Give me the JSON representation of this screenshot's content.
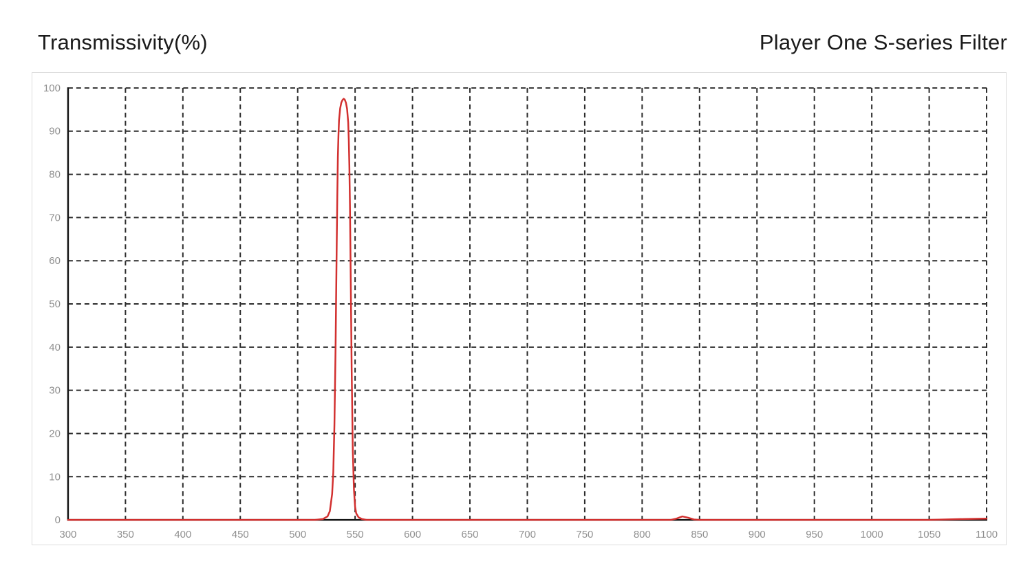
{
  "header": {
    "ylabel_title": "Transmissivity(%)",
    "chart_title": "Player One S-series Filter"
  },
  "colors": {
    "background": "#ffffff",
    "title_text": "#1b1b1b",
    "tick_label": "#8f8f8f",
    "grid_line": "#2b2b2b",
    "axis_line": "#141414",
    "curve": "#d2302f",
    "outer_border": "#dcdcdc"
  },
  "chart_data": {
    "type": "line",
    "title": "Player One S-series Filter",
    "ylabel": "Transmissivity(%)",
    "xlabel": "",
    "xlim": [
      300,
      1100
    ],
    "ylim": [
      0,
      100
    ],
    "x_ticks": [
      300,
      350,
      400,
      450,
      500,
      550,
      600,
      650,
      700,
      750,
      800,
      850,
      900,
      950,
      1000,
      1050,
      1100
    ],
    "y_ticks": [
      0,
      10,
      20,
      30,
      40,
      50,
      60,
      70,
      80,
      90,
      100
    ],
    "grid": "dashed",
    "legend": "none",
    "peak_center_nm": 540,
    "peak_transmission_pct": 97.5,
    "fwhm_nm_approx": 12,
    "series": [
      {
        "name": "S-series filter transmission",
        "color": "#d2302f",
        "points": [
          [
            300,
            0
          ],
          [
            350,
            0
          ],
          [
            400,
            0
          ],
          [
            450,
            0
          ],
          [
            500,
            0
          ],
          [
            515,
            0
          ],
          [
            522,
            0.2
          ],
          [
            526,
            0.8
          ],
          [
            528,
            2
          ],
          [
            530,
            6
          ],
          [
            531,
            11
          ],
          [
            532,
            22
          ],
          [
            533,
            40
          ],
          [
            533.5,
            52
          ],
          [
            534,
            64
          ],
          [
            534.5,
            75
          ],
          [
            535,
            84
          ],
          [
            535.5,
            89
          ],
          [
            536,
            92.5
          ],
          [
            537,
            95.3
          ],
          [
            538,
            96.6
          ],
          [
            539,
            97.2
          ],
          [
            540,
            97.5
          ],
          [
            541,
            97.3
          ],
          [
            542,
            96.6
          ],
          [
            543,
            95.2
          ],
          [
            544,
            92
          ],
          [
            544.5,
            88
          ],
          [
            545,
            82
          ],
          [
            545.5,
            73
          ],
          [
            546,
            61
          ],
          [
            546.5,
            48
          ],
          [
            547,
            35
          ],
          [
            548,
            16
          ],
          [
            549,
            7
          ],
          [
            550,
            3
          ],
          [
            551,
            1.5
          ],
          [
            553,
            0.6
          ],
          [
            556,
            0.2
          ],
          [
            560,
            0
          ],
          [
            600,
            0
          ],
          [
            650,
            0
          ],
          [
            700,
            0
          ],
          [
            750,
            0
          ],
          [
            800,
            0
          ],
          [
            825,
            0
          ],
          [
            830,
            0.3
          ],
          [
            835,
            0.8
          ],
          [
            840,
            0.5
          ],
          [
            845,
            0.1
          ],
          [
            850,
            0
          ],
          [
            900,
            0
          ],
          [
            950,
            0
          ],
          [
            1000,
            0
          ],
          [
            1050,
            0
          ],
          [
            1080,
            0.2
          ],
          [
            1100,
            0.3
          ]
        ]
      }
    ]
  }
}
